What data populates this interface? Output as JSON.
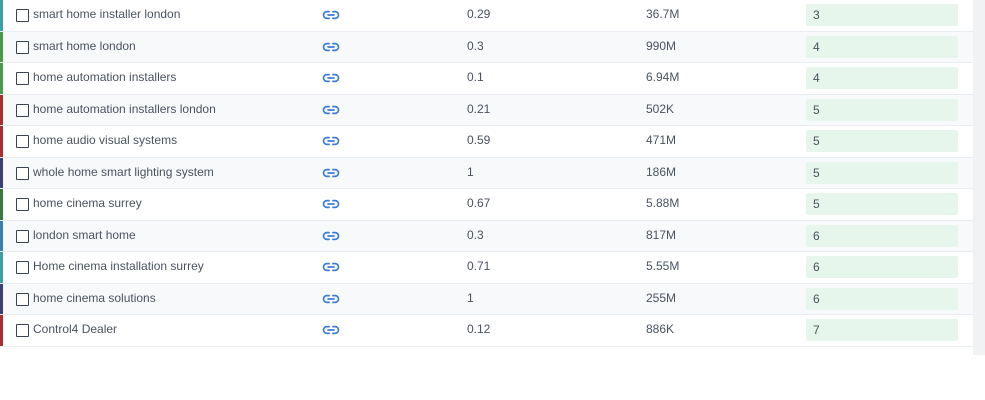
{
  "rows": [
    {
      "keyword": "smart home installer london",
      "kd": "0.29",
      "volume": "36.7M",
      "position": "3",
      "edge": "#3aa0a8"
    },
    {
      "keyword": "smart home london",
      "kd": "0.3",
      "volume": "990M",
      "position": "4",
      "edge": "#4a9a4a"
    },
    {
      "keyword": "home automation installers",
      "kd": "0.1",
      "volume": "6.94M",
      "position": "4",
      "edge": "#4a9a4a"
    },
    {
      "keyword": "home automation installers london",
      "kd": "0.21",
      "volume": "502K",
      "position": "5",
      "edge": "#a8302c"
    },
    {
      "keyword": "home audio visual systems",
      "kd": "0.59",
      "volume": "471M",
      "position": "5",
      "edge": "#a8302c"
    },
    {
      "keyword": "whole home smart lighting system",
      "kd": "1",
      "volume": "186M",
      "position": "5",
      "edge": "#3a3f7a"
    },
    {
      "keyword": "home cinema surrey",
      "kd": "0.67",
      "volume": "5.88M",
      "position": "5",
      "edge": "#3a7a3f"
    },
    {
      "keyword": "london smart home",
      "kd": "0.3",
      "volume": "817M",
      "position": "6",
      "edge": "#3a7fb0"
    },
    {
      "keyword": "Home cinema installation surrey",
      "kd": "0.71",
      "volume": "5.55M",
      "position": "6",
      "edge": "#3aa0a8"
    },
    {
      "keyword": "home cinema solutions",
      "kd": "1",
      "volume": "255M",
      "position": "6",
      "edge": "#3a3f7a"
    },
    {
      "keyword": "Control4 Dealer",
      "kd": "0.12",
      "volume": "886K",
      "position": "7",
      "edge": "#a8302c"
    }
  ],
  "icons": {
    "link": "link-icon",
    "checkbox": "checkbox"
  },
  "colors": {
    "position_bg": "#e6f6ec",
    "link": "#3b7dd8"
  }
}
